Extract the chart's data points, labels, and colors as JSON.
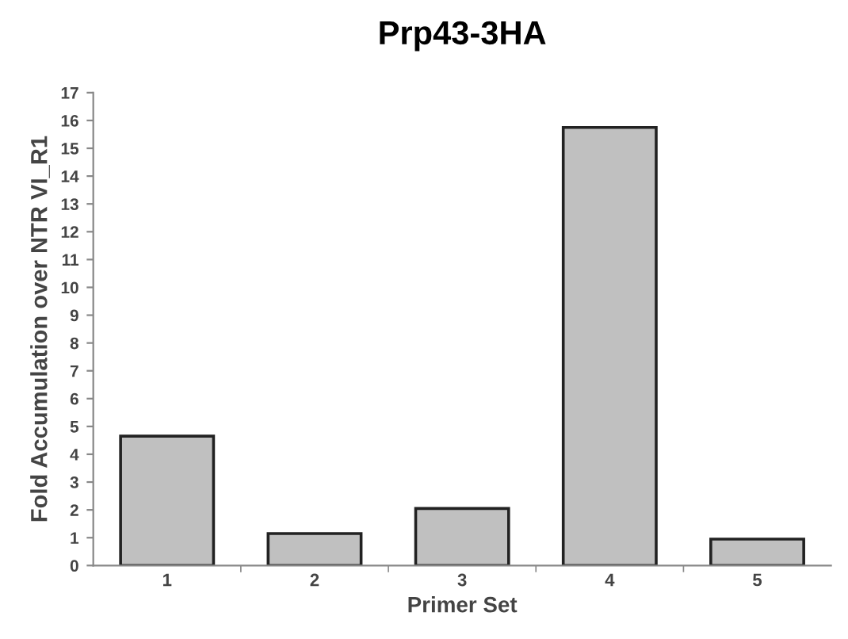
{
  "chart_data": {
    "type": "bar",
    "title": "Prp43-3HA",
    "xlabel": "Primer Set",
    "ylabel": "Fold Accumulation over NTR VI_R1",
    "categories": [
      "1",
      "2",
      "3",
      "4",
      "5"
    ],
    "values": [
      4.65,
      1.15,
      2.05,
      15.75,
      0.95
    ],
    "color": "#c0c0c0",
    "ylim": [
      0,
      17
    ],
    "yticks": [
      0,
      1,
      2,
      3,
      4,
      5,
      6,
      7,
      8,
      9,
      10,
      11,
      12,
      13,
      14,
      15,
      16,
      17
    ],
    "grid": false
  }
}
